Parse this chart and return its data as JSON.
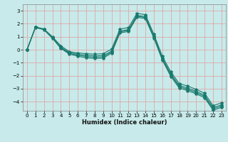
{
  "xlabel": "Humidex (Indice chaleur)",
  "background_color": "#c8eaea",
  "grid_color": "#e0a8a8",
  "line_color": "#1a7a6e",
  "xlim": [
    -0.5,
    23.5
  ],
  "ylim": [
    -4.7,
    3.5
  ],
  "xticks": [
    0,
    1,
    2,
    3,
    4,
    5,
    6,
    7,
    8,
    9,
    10,
    11,
    12,
    13,
    14,
    15,
    16,
    17,
    18,
    19,
    20,
    21,
    22,
    23
  ],
  "yticks": [
    -4,
    -3,
    -2,
    -1,
    0,
    1,
    2,
    3
  ],
  "curves": [
    [
      0,
      1.75,
      1.6,
      1.0,
      0.3,
      -0.15,
      -0.25,
      -0.3,
      -0.35,
      -0.3,
      0.05,
      1.6,
      1.7,
      2.8,
      2.7,
      1.2,
      -0.5,
      -1.7,
      -2.6,
      -2.8,
      -3.05,
      -3.35,
      -4.3,
      -4.1
    ],
    [
      0,
      1.75,
      1.58,
      0.95,
      0.2,
      -0.22,
      -0.35,
      -0.42,
      -0.48,
      -0.45,
      -0.1,
      1.45,
      1.55,
      2.65,
      2.55,
      1.05,
      -0.65,
      -1.85,
      -2.75,
      -2.95,
      -3.2,
      -3.5,
      -4.45,
      -4.25
    ],
    [
      0,
      1.73,
      1.56,
      0.92,
      0.15,
      -0.28,
      -0.42,
      -0.52,
      -0.58,
      -0.55,
      -0.18,
      1.38,
      1.48,
      2.58,
      2.48,
      0.98,
      -0.72,
      -1.95,
      -2.85,
      -3.05,
      -3.3,
      -3.6,
      -4.55,
      -4.35
    ],
    [
      0,
      1.71,
      1.54,
      0.88,
      0.1,
      -0.34,
      -0.5,
      -0.62,
      -0.68,
      -0.65,
      -0.26,
      1.3,
      1.4,
      2.5,
      2.4,
      0.9,
      -0.8,
      -2.05,
      -2.95,
      -3.15,
      -3.4,
      -3.7,
      -4.65,
      -4.45
    ]
  ],
  "marker": "*",
  "markersize": 3,
  "linewidth": 0.8,
  "xlabel_fontsize": 6,
  "tick_labelsize": 5,
  "xlabel_fontweight": "bold"
}
